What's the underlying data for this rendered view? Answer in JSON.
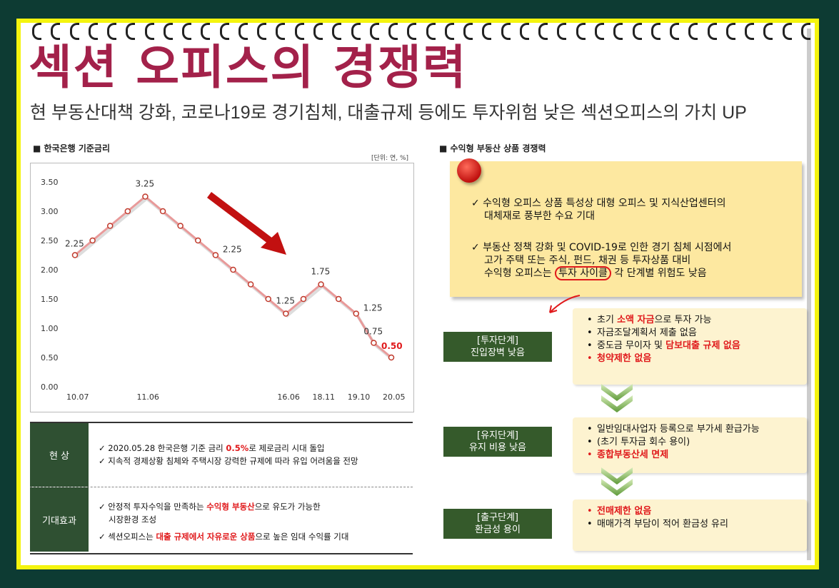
{
  "header": {
    "title": "섹션 오피스의 경쟁력",
    "subtitle": "현 부동산대책 강화, 코로나19로 경기침체, 대출규제 등에도 투자위험 낮은 섹션오피스의 가치 UP"
  },
  "left": {
    "section_title": "■ 한국은행 기준금리",
    "unit": "[단위: 연, %]"
  },
  "chart_data": {
    "type": "line",
    "x_tick_labels": [
      "10.07",
      "11.06",
      "16.06",
      "18.11",
      "19.10",
      "20.05"
    ],
    "values": [
      2.25,
      2.5,
      2.75,
      3.0,
      3.25,
      3.0,
      2.75,
      2.5,
      2.25,
      2.0,
      1.75,
      1.5,
      1.25,
      1.5,
      1.75,
      1.5,
      1.25,
      0.75,
      0.5
    ],
    "data_labels": [
      {
        "index": 0,
        "text": "2.25"
      },
      {
        "index": 4,
        "text": "3.25"
      },
      {
        "index": 8,
        "text": "2.25"
      },
      {
        "index": 12,
        "text": "1.25"
      },
      {
        "index": 14,
        "text": "1.75"
      },
      {
        "index": 16,
        "text": "1.25"
      },
      {
        "index": 17,
        "text": "0.75"
      },
      {
        "index": 18,
        "text": "0.50",
        "highlight": true
      }
    ],
    "y_ticks": [
      "0.00",
      "0.50",
      "1.00",
      "1.50",
      "2.00",
      "2.50",
      "3.00",
      "3.50"
    ],
    "ylim": [
      0,
      3.5
    ],
    "grid": false,
    "line_color": "#e89a9a",
    "marker_color": "#c0392b",
    "highlight_color": "#e0191b",
    "arrow_color": "#c21010"
  },
  "table": {
    "rows": [
      {
        "head": "현 상",
        "lines": [
          {
            "pre": "✓ 2020.05.28 한국은행 기준 금리 ",
            "hl": "0.5%",
            "post": "로 제로금리 시대 돌입"
          },
          {
            "pre": "✓ 지속적 경제상황 침체와 주택시장 강력한 규제에 따라 유입 어려움을 전망",
            "hl": "",
            "post": ""
          }
        ]
      },
      {
        "head": "기대효과",
        "lines": [
          {
            "pre": "✓ 안정적 투자수익을 만족하는 ",
            "hl": "수익형 부동산",
            "post": "으로 유도가 가능한"
          },
          {
            "pre": "시장환경 조성",
            "hl": "",
            "post": ""
          },
          {
            "pre": "✓ 섹션오피스는 ",
            "hl": "대출 규제에서 자유로운 상품",
            "post": "으로 높은 임대 수익률 기대"
          }
        ]
      }
    ]
  },
  "right": {
    "section_title": "■ 수익형 부동산 상품 경쟁력",
    "note": {
      "item1_line1": "✓ 수익형 오피스 상품 특성상 대형 오피스 및 지식산업센터의",
      "item1_line2": "대체재로 풍부한 수요 기대",
      "item2_line1": "✓ 부동산 정책 강화 및 COVID-19로 인한 경기 침체 시점에서",
      "item2_line2": "고가 주택 또는 주식, 펀드, 채권 등 투자상품 대비",
      "item2_line3_pre": "수익형 오피스는 ",
      "item2_line3_circled": "투자 사이클",
      "item2_line3_post": " 각 단계별 위험도 낮음"
    },
    "stages": [
      {
        "name": "[투자단계]",
        "desc": "진입장벽 낮음",
        "items": [
          {
            "pre": "초기 ",
            "hl": "소액 자금",
            "post": "으로 투자 가능",
            "red": false
          },
          {
            "pre": "자금조달계획서 제출 없음",
            "hl": "",
            "post": "",
            "red": false
          },
          {
            "pre": "중도금 무이자 및 ",
            "hl": "담보대출 규제 없음",
            "post": "",
            "red": false
          },
          {
            "pre": "",
            "hl": "청약제한 없음",
            "post": "",
            "red": true
          }
        ]
      },
      {
        "name": "[유지단계]",
        "desc": "유지 비용 낮음",
        "items": [
          {
            "pre": "일반임대사업자 등록으로 부가세 환급가능",
            "hl": "",
            "post": "",
            "red": false
          },
          {
            "pre": "(초기 투자금 회수 용이)",
            "hl": "",
            "post": "",
            "red": false
          },
          {
            "pre": "",
            "hl": "종합부동산세 면제",
            "post": "",
            "red": true
          }
        ]
      },
      {
        "name": "[출구단계]",
        "desc": "환금성 용이",
        "items": [
          {
            "pre": "",
            "hl": "전매제한 없음",
            "post": "",
            "red": true
          },
          {
            "pre": "매매가격 부담이 적어 환금성 유리",
            "hl": "",
            "post": "",
            "red": false
          }
        ]
      }
    ]
  },
  "colors": {
    "title": "#a3214a",
    "frame": "#f4f40e",
    "background": "#0d3b33",
    "stage_green": "#355a2b",
    "note_yellow": "#fde8a0",
    "highlight_red": "#e0191b"
  }
}
